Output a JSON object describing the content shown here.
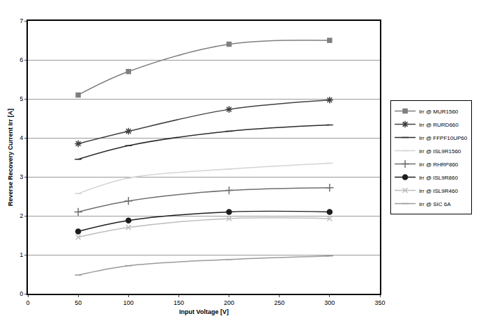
{
  "chart_data": {
    "type": "line",
    "x_label": "Input Voltage [V]",
    "y_label": "Reverse Recovery Current Irr [A]",
    "x": [
      50,
      100,
      200,
      300
    ],
    "series": [
      {
        "name": "Irr @ MUR1560",
        "color": "#7f7f7f",
        "marker": "square",
        "line_style": "solid",
        "values": [
          5.1,
          5.7,
          6.4,
          6.5
        ]
      },
      {
        "name": "Irr @ RURD660",
        "color": "#404040",
        "marker": "asterisk",
        "line_style": "solid",
        "values": [
          3.85,
          4.17,
          4.73,
          4.97
        ]
      },
      {
        "name": "Irr @ FFPF10UP60",
        "color": "#2a2a2a",
        "marker": "dash",
        "line_style": "solid",
        "values": [
          3.45,
          3.8,
          4.17,
          4.33
        ]
      },
      {
        "name": "Irr @ ISL9R1560",
        "color": "#d4d4d4",
        "marker": "dash",
        "line_style": "solid",
        "values": [
          2.57,
          2.97,
          3.2,
          3.35
        ]
      },
      {
        "name": "Irr @ RHRP860",
        "color": "#6e6e6e",
        "marker": "plus",
        "line_style": "solid",
        "values": [
          2.1,
          2.38,
          2.65,
          2.72
        ]
      },
      {
        "name": "Irr @ ISL9R860",
        "color": "#1e1e1e",
        "marker": "circle",
        "line_style": "solid",
        "values": [
          1.6,
          1.88,
          2.1,
          2.1
        ]
      },
      {
        "name": "Irr @ ISL9R460",
        "color": "#bdbdbd",
        "marker": "x",
        "line_style": "solid",
        "values": [
          1.45,
          1.7,
          1.93,
          1.93
        ]
      },
      {
        "name": "Irr @ SIC 6A",
        "color": "#9a9a9a",
        "marker": "dash",
        "line_style": "solid",
        "values": [
          0.48,
          0.72,
          0.88,
          0.97
        ]
      }
    ],
    "xlim": [
      0,
      350
    ],
    "xticks": [
      0,
      50,
      100,
      150,
      200,
      250,
      300,
      350
    ],
    "ylim": [
      0,
      7
    ],
    "yticks": [
      0,
      1,
      2,
      3,
      4,
      5,
      6,
      7
    ],
    "grid": true,
    "legend": "right"
  }
}
